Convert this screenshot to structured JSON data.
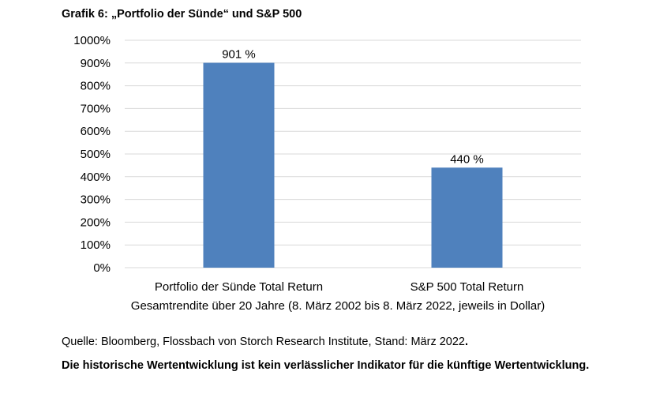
{
  "chart_title": "Grafik 6: „Portfolio der Sünde“ und S&P 500",
  "chart_data": {
    "type": "bar",
    "title": "Grafik 6: „Portfolio der Sünde“ und S&P 500",
    "categories": [
      "Portfolio der Sünde Total Return",
      "S&P 500 Total Return"
    ],
    "values": [
      901,
      440
    ],
    "data_labels": [
      "901 %",
      "440 %"
    ],
    "xlabel": "Gesamtrendite über 20 Jahre (8. März 2002 bis 8. März 2022, jeweils in Dollar)",
    "ylabel": "",
    "ylim": [
      0,
      1000
    ],
    "y_ticks": [
      "0%",
      "100%",
      "200%",
      "300%",
      "400%",
      "500%",
      "600%",
      "700%",
      "800%",
      "900%",
      "1000%"
    ],
    "grid": true,
    "legend": "none",
    "bar_color": "#4f81bd",
    "grid_color": "#d9d9d9"
  },
  "source_text": "Quelle: Bloomberg, Flossbach von Storch Research Institute, Stand: März 2022",
  "source_period": ".",
  "disclaimer": "Die historische Wertentwicklung ist kein verlässlicher Indikator für die künftige Werten­twicklung."
}
